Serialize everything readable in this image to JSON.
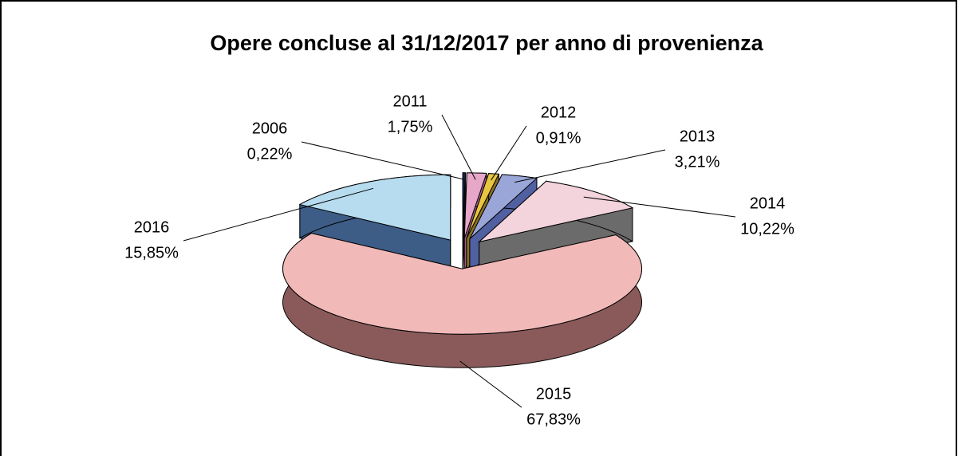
{
  "chart_data": {
    "type": "pie3d",
    "title": "Opere concluse al 31/12/2017 per anno di provenienza",
    "categories": [
      "2006",
      "2011",
      "2012",
      "2013",
      "2014",
      "2015",
      "2016"
    ],
    "values": [
      0.22,
      1.75,
      0.91,
      3.21,
      10.22,
      67.83,
      15.85
    ],
    "value_labels": [
      "0,22%",
      "1,75%",
      "0,91%",
      "3,21%",
      "10,22%",
      "67,83%",
      "15,85%"
    ],
    "colors": [
      "#1f2a5a",
      "#e7a7c9",
      "#e8c640",
      "#9aa6d8",
      "#f3d3dc",
      "#f2b9b9",
      "#b7dcef"
    ],
    "side_colors": [
      "#101838",
      "#a35c86",
      "#8a7020",
      "#5060a0",
      "#6b6b6b",
      "#8a5a5a",
      "#3d5c86"
    ]
  }
}
